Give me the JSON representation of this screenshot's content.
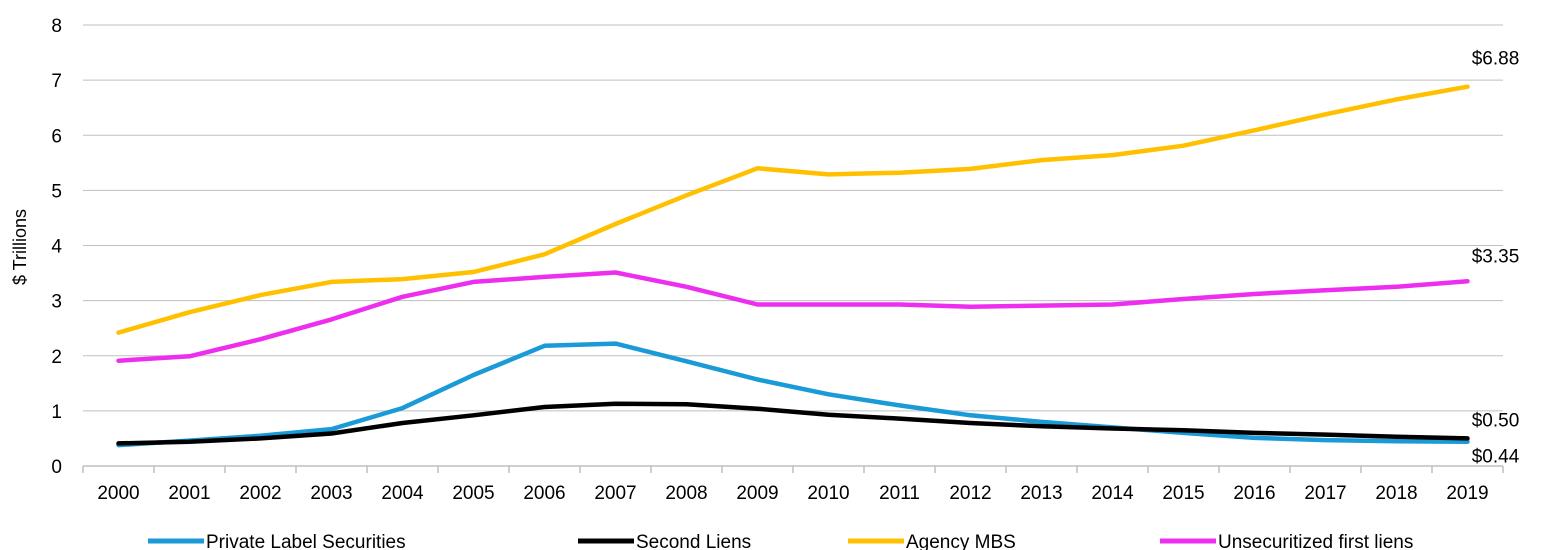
{
  "chart_data": {
    "type": "line",
    "title": "",
    "xlabel": "",
    "ylabel": "$ Trillions",
    "ylim": [
      0,
      8
    ],
    "yticks": [
      "0",
      "1",
      "2",
      "3",
      "4",
      "5",
      "6",
      "7",
      "8"
    ],
    "categories": [
      "2000",
      "2001",
      "2002",
      "2003",
      "2004",
      "2005",
      "2006",
      "2007",
      "2008",
      "2009",
      "2010",
      "2011",
      "2012",
      "2013",
      "2014",
      "2015",
      "2016",
      "2017",
      "2018",
      "2019"
    ],
    "grid": true,
    "legend_position": "bottom",
    "series": [
      {
        "name": "Private Label Securities",
        "color": "#1a9ad6",
        "values": [
          0.38,
          0.46,
          0.55,
          0.67,
          1.05,
          1.65,
          2.18,
          2.22,
          1.9,
          1.57,
          1.3,
          1.1,
          0.92,
          0.8,
          0.7,
          0.6,
          0.51,
          0.47,
          0.45,
          0.44
        ],
        "end_label": "$0.44"
      },
      {
        "name": "Second Liens",
        "color": "#000000",
        "values": [
          0.41,
          0.44,
          0.5,
          0.59,
          0.78,
          0.92,
          1.07,
          1.13,
          1.12,
          1.04,
          0.93,
          0.86,
          0.78,
          0.72,
          0.68,
          0.65,
          0.6,
          0.57,
          0.53,
          0.5
        ],
        "end_label": "$0.50"
      },
      {
        "name": "Agency MBS",
        "color": "#ffc000",
        "values": [
          2.42,
          2.79,
          3.1,
          3.34,
          3.39,
          3.52,
          3.84,
          4.39,
          4.91,
          5.4,
          5.29,
          5.32,
          5.39,
          5.55,
          5.64,
          5.81,
          6.09,
          6.38,
          6.65,
          6.88
        ],
        "end_label": "$6.88"
      },
      {
        "name": "Unsecuritized first liens",
        "color": "#ee2eee",
        "values": [
          1.91,
          1.99,
          2.3,
          2.66,
          3.07,
          3.34,
          3.43,
          3.51,
          3.25,
          2.93,
          2.93,
          2.93,
          2.89,
          2.91,
          2.93,
          3.03,
          3.12,
          3.19,
          3.25,
          3.35
        ],
        "end_label": "$3.35"
      }
    ]
  }
}
